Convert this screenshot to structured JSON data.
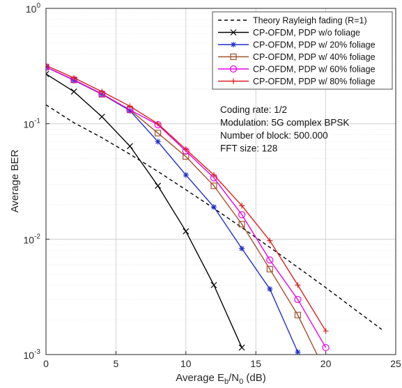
{
  "chart_data": {
    "type": "line",
    "xlabel": {
      "pre": "Average E",
      "sub1": "b",
      "mid": "/N",
      "sub2": "0",
      "post": " (dB)"
    },
    "ylabel": "Average BER",
    "xlim": [
      0,
      25
    ],
    "ylim": [
      0.001,
      1
    ],
    "yscale": "log",
    "grid": true,
    "minor_grid": true,
    "legend_position": "top-right",
    "x_ticks": [
      "0",
      "5",
      "10",
      "15",
      "20",
      "25"
    ],
    "y_ticks": [
      {
        "base": "10",
        "exp": "0"
      },
      {
        "base": "10",
        "exp": "-1"
      },
      {
        "base": "10",
        "exp": "-2"
      },
      {
        "base": "10",
        "exp": "-3"
      }
    ],
    "annotations": [
      "Coding rate: 1/2",
      "Modulation: 5G complex BPSK",
      "Number of block: 500.000",
      "FFT size: 128"
    ],
    "series": [
      {
        "name": "Theory Rayleigh fading (R=1)",
        "color": "#000000",
        "marker": "none",
        "dash": "dashed",
        "x": [
          0,
          2,
          4,
          6,
          8,
          10,
          12,
          14,
          16,
          18,
          20,
          22,
          24
        ],
        "y": [
          0.146,
          0.102,
          0.0757,
          0.0545,
          0.0386,
          0.0268,
          0.0185,
          0.0126,
          0.0085,
          0.0057,
          0.0038,
          0.0025,
          0.00165
        ]
      },
      {
        "name": "CP-OFDM, PDP w/o foliage",
        "color": "#000000",
        "marker": "x",
        "dash": "solid",
        "x": [
          0,
          2,
          4,
          6,
          8,
          10,
          12,
          14
        ],
        "y": [
          0.27,
          0.19,
          0.115,
          0.064,
          0.029,
          0.0117,
          0.004,
          0.00115
        ]
      },
      {
        "name": "CP-OFDM, PDP w/ 20% foliage",
        "color": "#1f2ec6",
        "marker": "asterisk",
        "dash": "solid",
        "x": [
          0,
          2,
          4,
          6,
          8,
          10,
          12,
          14,
          16,
          18
        ],
        "y": [
          0.31,
          0.238,
          0.18,
          0.13,
          0.07,
          0.036,
          0.019,
          0.0083,
          0.0037,
          0.00105
        ]
      },
      {
        "name": "CP-OFDM, PDP w/ 40% foliage",
        "color": "#a0522d",
        "marker": "square",
        "dash": "solid",
        "x": [
          0,
          2,
          4,
          6,
          8,
          10,
          12,
          14,
          16,
          18,
          20
        ],
        "y": [
          0.31,
          0.24,
          0.18,
          0.132,
          0.083,
          0.052,
          0.029,
          0.0135,
          0.0055,
          0.0022,
          0.0007
        ]
      },
      {
        "name": "CP-OFDM, PDP w/ 60% foliage",
        "color": "#e600e6",
        "marker": "circle",
        "dash": "solid",
        "x": [
          0,
          2,
          4,
          6,
          8,
          10,
          12,
          14,
          16,
          18,
          20
        ],
        "y": [
          0.31,
          0.24,
          0.182,
          0.132,
          0.098,
          0.058,
          0.034,
          0.0163,
          0.0066,
          0.003,
          0.00115
        ]
      },
      {
        "name": "CP-OFDM, PDP w/ 80% foliage",
        "color": "#d91e1e",
        "marker": "plus",
        "dash": "solid",
        "x": [
          0,
          2,
          4,
          6,
          8,
          10,
          12,
          14,
          16,
          18,
          20
        ],
        "y": [
          0.32,
          0.25,
          0.19,
          0.142,
          0.1,
          0.06,
          0.036,
          0.0195,
          0.0097,
          0.004,
          0.0016
        ]
      }
    ]
  }
}
